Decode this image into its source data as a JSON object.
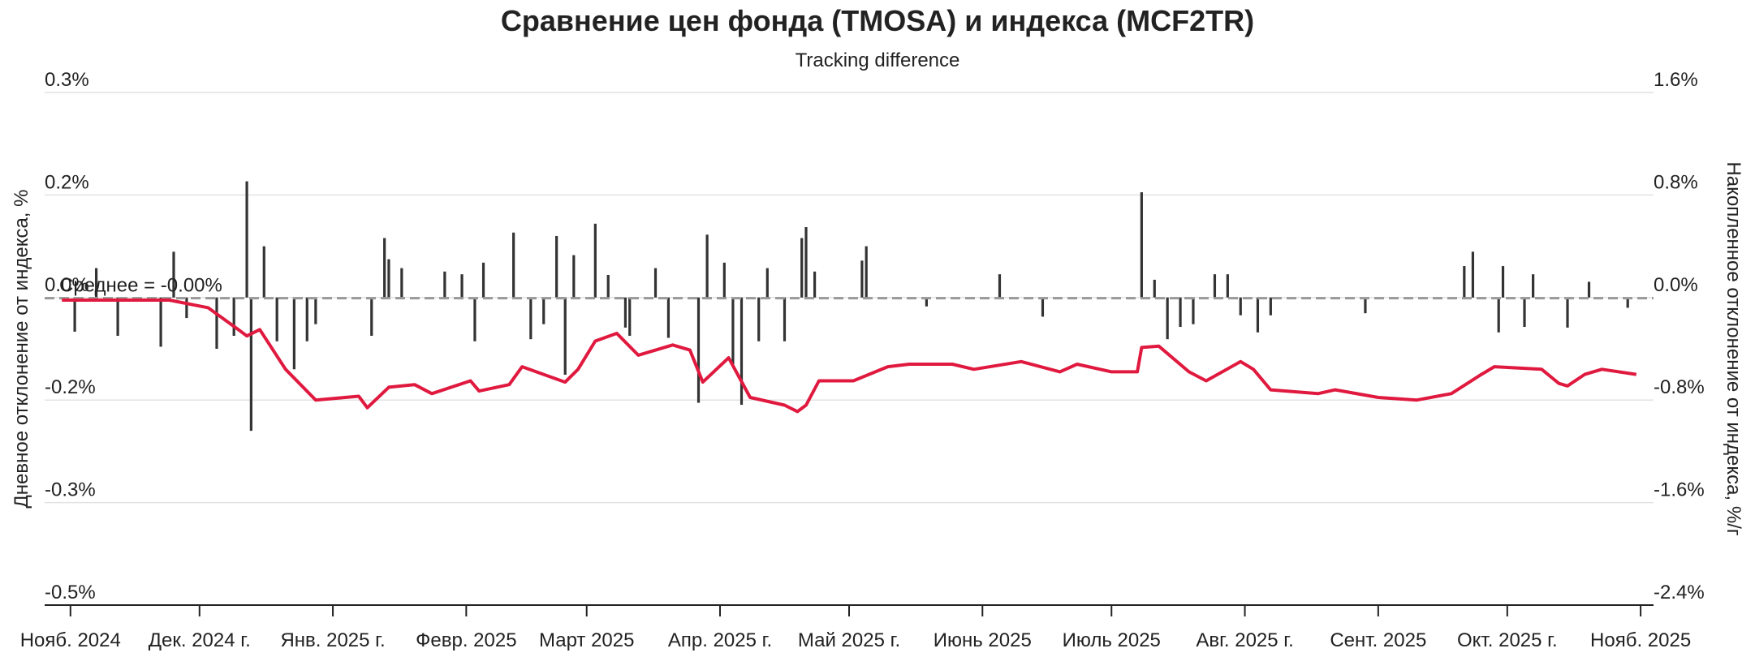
{
  "chart_data": {
    "type": "bar_line",
    "title": "Сравнение цен фонда (TMOSA) и индекса (MCF2TR)",
    "subtitle": "Tracking difference",
    "y_label": "Дневное отклонение от индекса, %",
    "y2_label": "Накопленное отклонение от индекса, %/г",
    "xlim": [
      "2024-10-26",
      "2025-11-04"
    ],
    "xticks": [
      {
        "value": "2024-11-01",
        "label": "Нояб. 2024"
      },
      {
        "value": "2024-12-01",
        "label": "Дек. 2024 г."
      },
      {
        "value": "2025-01-01",
        "label": "Янв. 2025 г."
      },
      {
        "value": "2025-02-01",
        "label": "Февр. 2025"
      },
      {
        "value": "2025-03-01",
        "label": "Март 2025"
      },
      {
        "value": "2025-04-01",
        "label": "Апр. 2025 г."
      },
      {
        "value": "2025-05-01",
        "label": "Май 2025 г."
      },
      {
        "value": "2025-06-01",
        "label": "Июнь 2025"
      },
      {
        "value": "2025-07-01",
        "label": "Июль 2025"
      },
      {
        "value": "2025-08-01",
        "label": "Авг. 2025 г."
      },
      {
        "value": "2025-09-01",
        "label": "Сент. 2025"
      },
      {
        "value": "2025-10-01",
        "label": "Окт. 2025 г."
      },
      {
        "value": "2025-11-01",
        "label": "Нояб. 2025"
      }
    ],
    "ylim": [
      -0.45,
      0.3
    ],
    "yticks": [
      {
        "value": 0.3,
        "label": "0.3%"
      },
      {
        "value": 0.15,
        "label": "0.2%"
      },
      {
        "value": 0,
        "label": "0.0%"
      },
      {
        "value": -0.15,
        "label": "-0.2%"
      },
      {
        "value": -0.3,
        "label": "-0.3%"
      },
      {
        "value": -0.45,
        "label": "-0.5%"
      }
    ],
    "y2lim": [
      -2.4,
      1.6
    ],
    "y2ticks": [
      {
        "value": 1.6,
        "label": "1.6%"
      },
      {
        "value": 0.8,
        "label": "0.8%"
      },
      {
        "value": 0,
        "label": "0.0%"
      },
      {
        "value": -0.8,
        "label": "-0.8%"
      },
      {
        "value": -1.6,
        "label": "-1.6%"
      },
      {
        "value": -2.4,
        "label": "-2.4%"
      }
    ],
    "grid": true,
    "mean": {
      "text": "Среднее = -0.00%",
      "value": -0.001,
      "color": "#999999"
    },
    "series": [
      {
        "type": "bar",
        "axis": "y",
        "color": "#333333",
        "x": [
          "2024-11-02",
          "2024-11-07",
          "2024-11-12",
          "2024-11-22",
          "2024-11-25",
          "2024-11-28",
          "2024-12-05",
          "2024-12-09",
          "2024-12-12",
          "2024-12-13",
          "2024-12-16",
          "2024-12-19",
          "2024-12-23",
          "2024-12-26",
          "2024-12-28",
          "2025-01-10",
          "2025-01-13",
          "2025-01-14",
          "2025-01-17",
          "2025-01-27",
          "2025-01-31",
          "2025-02-03",
          "2025-02-05",
          "2025-02-12",
          "2025-02-16",
          "2025-02-19",
          "2025-02-22",
          "2025-02-24",
          "2025-02-26",
          "2025-03-03",
          "2025-03-06",
          "2025-03-10",
          "2025-03-11",
          "2025-03-17",
          "2025-03-20",
          "2025-03-27",
          "2025-03-29",
          "2025-04-02",
          "2025-04-04",
          "2025-04-06",
          "2025-04-10",
          "2025-04-12",
          "2025-04-16",
          "2025-04-20",
          "2025-04-21",
          "2025-04-23",
          "2025-05-04",
          "2025-05-05",
          "2025-05-19",
          "2025-06-05",
          "2025-06-15",
          "2025-07-08",
          "2025-07-11",
          "2025-07-14",
          "2025-07-17",
          "2025-07-20",
          "2025-07-25",
          "2025-07-28",
          "2025-07-31",
          "2025-08-04",
          "2025-08-07",
          "2025-08-29",
          "2025-09-21",
          "2025-09-23",
          "2025-09-29",
          "2025-09-30",
          "2025-10-05",
          "2025-10-07",
          "2025-10-15",
          "2025-10-20",
          "2025-10-29"
        ],
        "values": [
          -0.05,
          0.043,
          -0.056,
          -0.072,
          0.067,
          -0.03,
          -0.075,
          -0.056,
          0.17,
          -0.195,
          0.075,
          -0.064,
          -0.105,
          -0.064,
          -0.039,
          -0.056,
          0.087,
          0.056,
          0.043,
          0.038,
          0.034,
          -0.064,
          0.051,
          0.095,
          -0.061,
          -0.039,
          0.09,
          -0.113,
          0.062,
          0.108,
          0.033,
          -0.044,
          -0.056,
          0.043,
          -0.059,
          -0.154,
          0.092,
          0.051,
          -0.098,
          -0.157,
          -0.064,
          0.043,
          -0.064,
          0.087,
          0.103,
          0.038,
          0.054,
          0.075,
          -0.013,
          0.034,
          -0.028,
          0.154,
          0.026,
          -0.061,
          -0.043,
          -0.039,
          0.034,
          0.034,
          -0.026,
          -0.051,
          -0.026,
          -0.023,
          0.046,
          0.067,
          -0.051,
          0.046,
          -0.043,
          0.034,
          -0.044,
          0.023,
          -0.015
        ]
      },
      {
        "type": "line",
        "axis": "y2",
        "color": "#e0193f",
        "x": [
          "2024-10-30",
          "2024-11-11",
          "2024-11-24",
          "2024-12-03",
          "2024-12-10",
          "2024-12-12",
          "2024-12-15",
          "2024-12-21",
          "2024-12-28",
          "2025-01-07",
          "2025-01-09",
          "2025-01-14",
          "2025-01-20",
          "2025-01-24",
          "2025-02-02",
          "2025-02-04",
          "2025-02-11",
          "2025-02-14",
          "2025-02-19",
          "2025-02-24",
          "2025-02-27",
          "2025-03-03",
          "2025-03-08",
          "2025-03-13",
          "2025-03-21",
          "2025-03-25",
          "2025-03-28",
          "2025-04-03",
          "2025-04-08",
          "2025-04-16",
          "2025-04-19",
          "2025-04-21",
          "2025-04-24",
          "2025-05-02",
          "2025-05-10",
          "2025-05-15",
          "2025-05-25",
          "2025-05-30",
          "2025-06-10",
          "2025-06-19",
          "2025-06-23",
          "2025-07-01",
          "2025-07-07",
          "2025-07-08",
          "2025-07-12",
          "2025-07-19",
          "2025-07-23",
          "2025-07-31",
          "2025-08-03",
          "2025-08-07",
          "2025-08-18",
          "2025-08-22",
          "2025-09-01",
          "2025-09-10",
          "2025-09-18",
          "2025-09-25",
          "2025-09-28",
          "2025-10-09",
          "2025-10-13",
          "2025-10-15",
          "2025-10-19",
          "2025-10-23",
          "2025-10-31"
        ],
        "values": [
          -0.02,
          -0.02,
          -0.02,
          -0.08,
          -0.25,
          -0.3,
          -0.25,
          -0.56,
          -0.8,
          -0.77,
          -0.86,
          -0.7,
          -0.68,
          -0.75,
          -0.65,
          -0.73,
          -0.68,
          -0.54,
          -0.6,
          -0.66,
          -0.56,
          -0.34,
          -0.28,
          -0.45,
          -0.37,
          -0.41,
          -0.66,
          -0.47,
          -0.78,
          -0.84,
          -0.89,
          -0.84,
          -0.65,
          -0.65,
          -0.54,
          -0.52,
          -0.52,
          -0.56,
          -0.5,
          -0.58,
          -0.52,
          -0.58,
          -0.58,
          -0.39,
          -0.38,
          -0.58,
          -0.65,
          -0.5,
          -0.56,
          -0.72,
          -0.75,
          -0.72,
          -0.78,
          -0.8,
          -0.75,
          -0.6,
          -0.54,
          -0.56,
          -0.67,
          -0.69,
          -0.6,
          -0.56,
          -0.6
        ]
      }
    ]
  }
}
